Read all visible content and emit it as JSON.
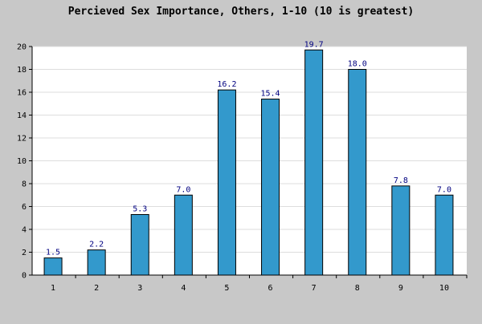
{
  "chart_data": {
    "type": "bar",
    "title": "Percieved Sex Importance, Others, 1-10 (10 is greatest)",
    "xlabel": "",
    "ylabel": "",
    "categories": [
      "1",
      "2",
      "3",
      "4",
      "5",
      "6",
      "7",
      "8",
      "9",
      "10"
    ],
    "values": [
      1.5,
      2.2,
      5.3,
      7.0,
      16.2,
      15.4,
      19.7,
      18.0,
      7.8,
      7.0
    ],
    "value_labels": [
      "1.5",
      "2.2",
      "5.3",
      "7.0",
      "16.2",
      "15.4",
      "19.7",
      "18.0",
      "7.8",
      "7.0"
    ],
    "ylim": [
      0,
      20
    ],
    "yticks": [
      0,
      2,
      4,
      6,
      8,
      10,
      12,
      14,
      16,
      18,
      20
    ],
    "grid": true,
    "legend": "none",
    "colors": {
      "background": "#c8c8c8",
      "plot_background": "#ffffff",
      "bar_fill": "#3399cc",
      "bar_stroke": "#000000",
      "value_label": "#000080",
      "gridline": "#dddddd",
      "text": "#000000"
    }
  }
}
